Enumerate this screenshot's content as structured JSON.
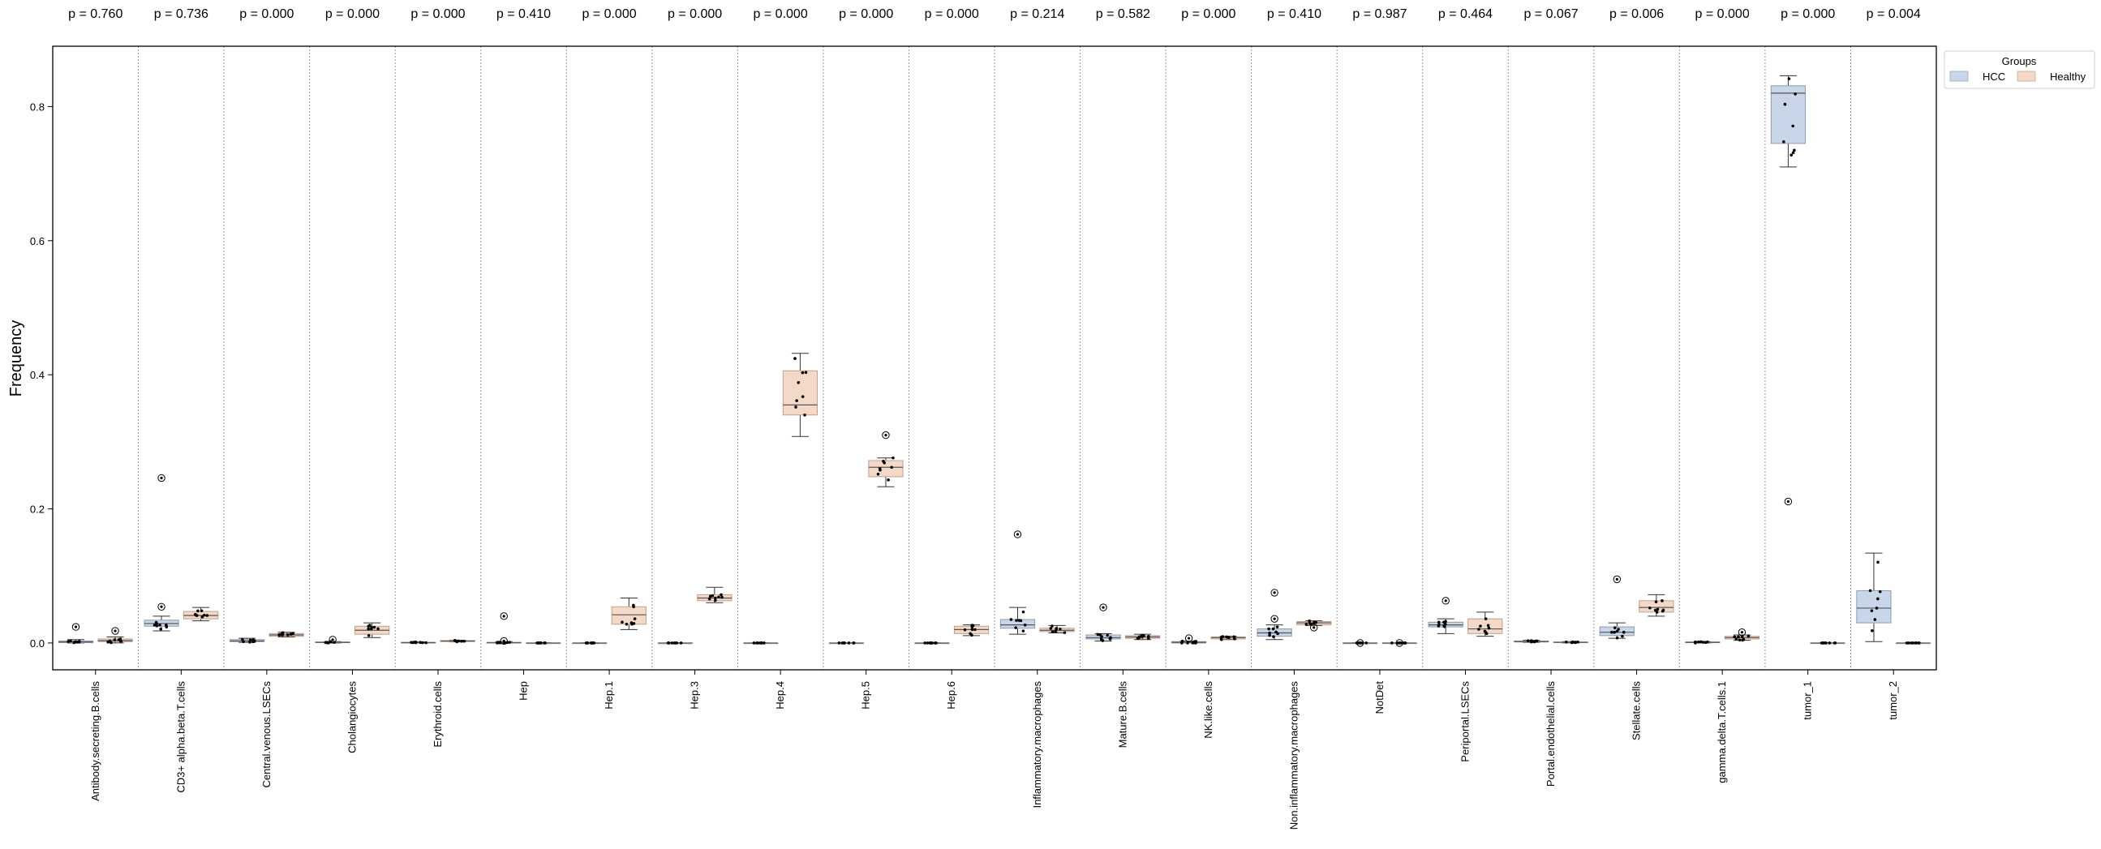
{
  "chart_data": {
    "type": "box",
    "title": "",
    "xlabel": "",
    "ylabel": "Frequency",
    "ylim": [
      -0.04,
      0.89
    ],
    "yticks": [
      0.0,
      0.2,
      0.4,
      0.6,
      0.8
    ],
    "ytick_labels": [
      "0.0",
      "0.2",
      "0.4",
      "0.6",
      "0.8"
    ],
    "grid": "vertical-separators",
    "legend": {
      "title": "Groups",
      "placement": "outside-top-right",
      "entries": [
        {
          "name": "HCC",
          "color": "#c9d6e9"
        },
        {
          "name": "Healthy",
          "color": "#f4d9c9"
        }
      ]
    },
    "categories": [
      {
        "label": "Antibody.secreting.B.cells",
        "p": "p = 0.760",
        "hcc": {
          "q1": 0.0005,
          "median": 0.0015,
          "q3": 0.003,
          "lo": 0.0,
          "hi": 0.005,
          "outliers": [
            0.024
          ]
        },
        "healthy": {
          "q1": 0.002,
          "median": 0.0035,
          "q3": 0.006,
          "lo": 0.0,
          "hi": 0.009,
          "outliers": [
            0.018
          ]
        }
      },
      {
        "label": "CD3+ alpha.beta.T.cells",
        "p": "p = 0.736",
        "hcc": {
          "q1": 0.025,
          "median": 0.029,
          "q3": 0.034,
          "lo": 0.018,
          "hi": 0.04,
          "outliers": [
            0.054,
            0.246
          ]
        },
        "healthy": {
          "q1": 0.036,
          "median": 0.041,
          "q3": 0.047,
          "lo": 0.033,
          "hi": 0.053,
          "outliers": []
        }
      },
      {
        "label": "Central.venous.LSECs",
        "p": "p = 0.000",
        "hcc": {
          "q1": 0.002,
          "median": 0.003,
          "q3": 0.005,
          "lo": 0.001,
          "hi": 0.007,
          "outliers": []
        },
        "healthy": {
          "q1": 0.01,
          "median": 0.012,
          "q3": 0.014,
          "lo": 0.009,
          "hi": 0.016,
          "outliers": []
        }
      },
      {
        "label": "Cholangiocytes",
        "p": "p = 0.000",
        "hcc": {
          "q1": 0.0005,
          "median": 0.001,
          "q3": 0.0015,
          "lo": 0.0,
          "hi": 0.002,
          "outliers": [
            0.005
          ]
        },
        "healthy": {
          "q1": 0.013,
          "median": 0.019,
          "q3": 0.025,
          "lo": 0.008,
          "hi": 0.03,
          "outliers": []
        }
      },
      {
        "label": "Erythroid.cells",
        "p": "p = 0.000",
        "hcc": {
          "q1": 0.0,
          "median": 0.0005,
          "q3": 0.001,
          "lo": 0.0,
          "hi": 0.0015,
          "outliers": []
        },
        "healthy": {
          "q1": 0.002,
          "median": 0.003,
          "q3": 0.0035,
          "lo": 0.0015,
          "hi": 0.004,
          "outliers": []
        }
      },
      {
        "label": "Hep",
        "p": "p = 0.410",
        "hcc": {
          "q1": 0.0,
          "median": 0.0003,
          "q3": 0.001,
          "lo": 0.0,
          "hi": 0.002,
          "outliers": [
            0.04,
            0.003
          ]
        },
        "healthy": {
          "q1": 0.0,
          "median": 0.0,
          "q3": 0.0,
          "lo": 0.0,
          "hi": 0.0,
          "outliers": []
        }
      },
      {
        "label": "Hep.1",
        "p": "p = 0.000",
        "hcc": {
          "q1": 0.0,
          "median": 0.0,
          "q3": 0.0,
          "lo": 0.0,
          "hi": 0.0,
          "outliers": []
        },
        "healthy": {
          "q1": 0.028,
          "median": 0.042,
          "q3": 0.054,
          "lo": 0.02,
          "hi": 0.067,
          "outliers": []
        }
      },
      {
        "label": "Hep.3",
        "p": "p = 0.000",
        "hcc": {
          "q1": 0.0,
          "median": 0.0,
          "q3": 0.0,
          "lo": 0.0,
          "hi": 0.0,
          "outliers": []
        },
        "healthy": {
          "q1": 0.063,
          "median": 0.067,
          "q3": 0.072,
          "lo": 0.06,
          "hi": 0.083,
          "outliers": []
        }
      },
      {
        "label": "Hep.4",
        "p": "p = 0.000",
        "hcc": {
          "q1": 0.0,
          "median": 0.0,
          "q3": 0.0,
          "lo": 0.0,
          "hi": 0.0,
          "outliers": []
        },
        "healthy": {
          "q1": 0.34,
          "median": 0.355,
          "q3": 0.406,
          "lo": 0.308,
          "hi": 0.432,
          "outliers": []
        }
      },
      {
        "label": "Hep.5",
        "p": "p = 0.000",
        "hcc": {
          "q1": 0.0,
          "median": 0.0,
          "q3": 0.0,
          "lo": 0.0,
          "hi": 0.0,
          "outliers": []
        },
        "healthy": {
          "q1": 0.248,
          "median": 0.262,
          "q3": 0.272,
          "lo": 0.233,
          "hi": 0.276,
          "outliers": [
            0.31
          ]
        }
      },
      {
        "label": "Hep.6",
        "p": "p = 0.000",
        "hcc": {
          "q1": 0.0,
          "median": 0.0,
          "q3": 0.0,
          "lo": 0.0,
          "hi": 0.0,
          "outliers": []
        },
        "healthy": {
          "q1": 0.014,
          "median": 0.02,
          "q3": 0.025,
          "lo": 0.011,
          "hi": 0.027,
          "outliers": []
        }
      },
      {
        "label": "Inflammatory.macrophages",
        "p": "p = 0.214",
        "hcc": {
          "q1": 0.022,
          "median": 0.027,
          "q3": 0.035,
          "lo": 0.013,
          "hi": 0.053,
          "outliers": [
            0.162
          ]
        },
        "healthy": {
          "q1": 0.017,
          "median": 0.019,
          "q3": 0.022,
          "lo": 0.015,
          "hi": 0.026,
          "outliers": []
        }
      },
      {
        "label": "Mature.B.cells",
        "p": "p = 0.582",
        "hcc": {
          "q1": 0.006,
          "median": 0.008,
          "q3": 0.012,
          "lo": 0.003,
          "hi": 0.014,
          "outliers": [
            0.053
          ]
        },
        "healthy": {
          "q1": 0.007,
          "median": 0.009,
          "q3": 0.011,
          "lo": 0.005,
          "hi": 0.013,
          "outliers": []
        }
      },
      {
        "label": "NK.like.cells",
        "p": "p = 0.000",
        "hcc": {
          "q1": 0.0,
          "median": 0.001,
          "q3": 0.002,
          "lo": 0.0,
          "hi": 0.003,
          "outliers": [
            0.007
          ]
        },
        "healthy": {
          "q1": 0.006,
          "median": 0.008,
          "q3": 0.009,
          "lo": 0.005,
          "hi": 0.01,
          "outliers": []
        }
      },
      {
        "label": "Non.inflammatory.macrophages",
        "p": "p = 0.410",
        "hcc": {
          "q1": 0.01,
          "median": 0.015,
          "q3": 0.021,
          "lo": 0.005,
          "hi": 0.027,
          "outliers": [
            0.036,
            0.075
          ]
        },
        "healthy": {
          "q1": 0.027,
          "median": 0.03,
          "q3": 0.032,
          "lo": 0.026,
          "hi": 0.033,
          "outliers": [
            0.023
          ]
        }
      },
      {
        "label": "NotDet",
        "p": "p = 0.987",
        "hcc": {
          "q1": 0.0,
          "median": 0.0,
          "q3": 0.0,
          "lo": 0.0,
          "hi": 0.0,
          "outliers": [
            0.0
          ]
        },
        "healthy": {
          "q1": 0.0,
          "median": 0.0,
          "q3": 0.0,
          "lo": 0.0,
          "hi": 0.0,
          "outliers": [
            0.0
          ]
        }
      },
      {
        "label": "Periportal.LSECs",
        "p": "p = 0.464",
        "hcc": {
          "q1": 0.024,
          "median": 0.027,
          "q3": 0.031,
          "lo": 0.014,
          "hi": 0.036,
          "outliers": [
            0.063
          ]
        },
        "healthy": {
          "q1": 0.014,
          "median": 0.021,
          "q3": 0.036,
          "lo": 0.01,
          "hi": 0.046,
          "outliers": []
        }
      },
      {
        "label": "Portal.endothelial.cells",
        "p": "p = 0.067",
        "hcc": {
          "q1": 0.0015,
          "median": 0.002,
          "q3": 0.003,
          "lo": 0.001,
          "hi": 0.004,
          "outliers": []
        },
        "healthy": {
          "q1": 0.0005,
          "median": 0.001,
          "q3": 0.0015,
          "lo": 0.0,
          "hi": 0.002,
          "outliers": []
        }
      },
      {
        "label": "Stellate.cells",
        "p": "p = 0.006",
        "hcc": {
          "q1": 0.011,
          "median": 0.016,
          "q3": 0.024,
          "lo": 0.007,
          "hi": 0.03,
          "outliers": [
            0.095
          ]
        },
        "healthy": {
          "q1": 0.046,
          "median": 0.053,
          "q3": 0.063,
          "lo": 0.04,
          "hi": 0.072,
          "outliers": []
        }
      },
      {
        "label": "gamma.delta.T.cells.1",
        "p": "p = 0.000",
        "hcc": {
          "q1": 0.0005,
          "median": 0.001,
          "q3": 0.0015,
          "lo": 0.0,
          "hi": 0.002,
          "outliers": []
        },
        "healthy": {
          "q1": 0.006,
          "median": 0.008,
          "q3": 0.01,
          "lo": 0.004,
          "hi": 0.012,
          "outliers": [
            0.016
          ]
        }
      },
      {
        "label": "tumor_1",
        "p": "p = 0.000",
        "hcc": {
          "q1": 0.745,
          "median": 0.82,
          "q3": 0.831,
          "lo": 0.71,
          "hi": 0.846,
          "outliers": [
            0.211
          ]
        },
        "healthy": {
          "q1": 0.0,
          "median": 0.0,
          "q3": 0.0,
          "lo": 0.0,
          "hi": 0.0,
          "outliers": []
        }
      },
      {
        "label": "tumor_2",
        "p": "p = 0.004",
        "hcc": {
          "q1": 0.03,
          "median": 0.052,
          "q3": 0.078,
          "lo": 0.002,
          "hi": 0.134,
          "outliers": []
        },
        "healthy": {
          "q1": 0.0,
          "median": 0.0,
          "q3": 0.0,
          "lo": 0.0,
          "hi": 0.0,
          "outliers": []
        }
      }
    ]
  }
}
